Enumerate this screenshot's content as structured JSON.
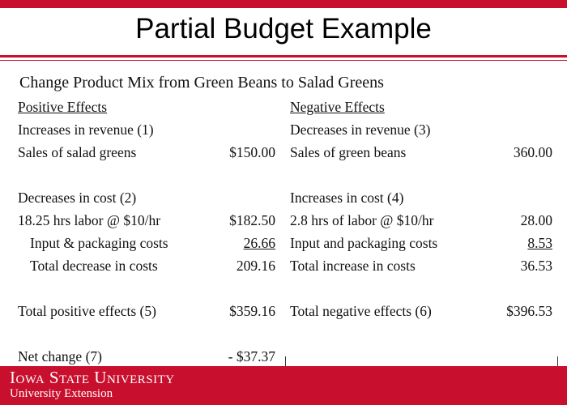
{
  "title": "Partial Budget Example",
  "subtitle": "Change Product Mix from Green Beans to Salad Greens",
  "positive": {
    "heading": "Positive Effects",
    "rev_head": "Increases in revenue (1)",
    "rev_item": "Sales of salad greens",
    "rev_value": "$150.00",
    "cost_head": "Decreases in cost (2)",
    "cost_item1": "18.25 hrs labor @ $10/hr",
    "cost_value1": "$182.50",
    "cost_item2": "Input & packaging costs",
    "cost_value2": "26.66",
    "cost_total_label": "Total decrease in costs",
    "cost_total_value": "209.16",
    "total_label": "Total positive effects (5)",
    "total_value": "$359.16",
    "net_label": "Net change (7)",
    "net_value": "- $37.37"
  },
  "negative": {
    "heading": "Negative Effects",
    "rev_head": "Decreases in revenue (3)",
    "rev_item": "Sales of green beans",
    "rev_value": "360.00",
    "cost_head": "Increases in cost (4)",
    "cost_item1": "2.8 hrs of labor @ $10/hr",
    "cost_value1": "28.00",
    "cost_item2": "Input and packaging costs",
    "cost_value2": "8.53",
    "cost_total_label": "Total increase in costs",
    "cost_total_value": "36.53",
    "total_label": "Total negative effects (6)",
    "total_value": "$396.53"
  },
  "footer": {
    "university": "Iowa State University",
    "unit": "University Extension"
  },
  "colors": {
    "accent": "#c8102e"
  }
}
